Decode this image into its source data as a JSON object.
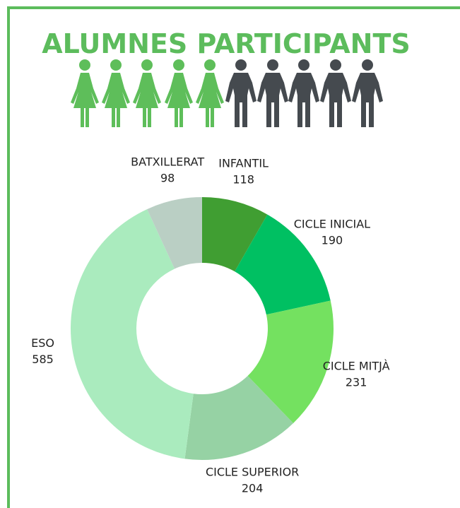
{
  "chart_data": {
    "type": "donut",
    "title": "ALUMNES PARTICIPANTS",
    "categories": [
      "INFANTIL",
      "CICLE INICIAL",
      "CICLE MITJÀ",
      "CICLE SUPERIOR",
      "ESO",
      "BATXILLERAT"
    ],
    "values": [
      118,
      190,
      231,
      204,
      585,
      98
    ],
    "colors": [
      "#409e32",
      "#00c062",
      "#74e160",
      "#96d2a4",
      "#aaebbe",
      "#bacfc4"
    ]
  }
}
